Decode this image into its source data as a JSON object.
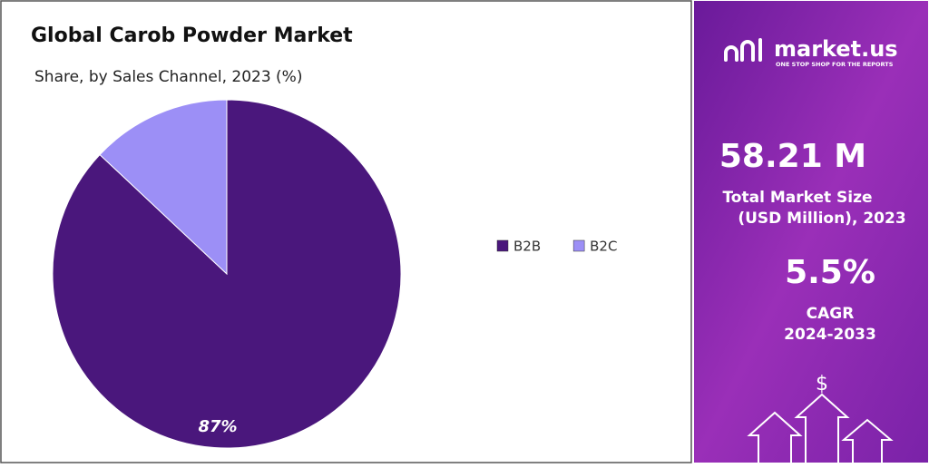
{
  "chart_data": {
    "type": "pie",
    "title": "Global Carob Powder Market",
    "subtitle": "Share, by Sales Channel, 2023 (%)",
    "categories": [
      "B2B",
      "B2C"
    ],
    "values": [
      87,
      13
    ],
    "value_labels": [
      "87%",
      null
    ],
    "colors": [
      "#4a177c",
      "#9c8ff6"
    ],
    "legend": "right"
  },
  "panel": {
    "brand": "market.us",
    "tagline": "ONE STOP SHOP FOR THE REPORTS",
    "market_size": "58.21 M",
    "market_size_label_1": "Total Market Size",
    "market_size_label_2": "(USD Million), 2023",
    "cagr": "5.5%",
    "cagr_label_1": "CAGR",
    "cagr_label_2": "2024-2033"
  }
}
